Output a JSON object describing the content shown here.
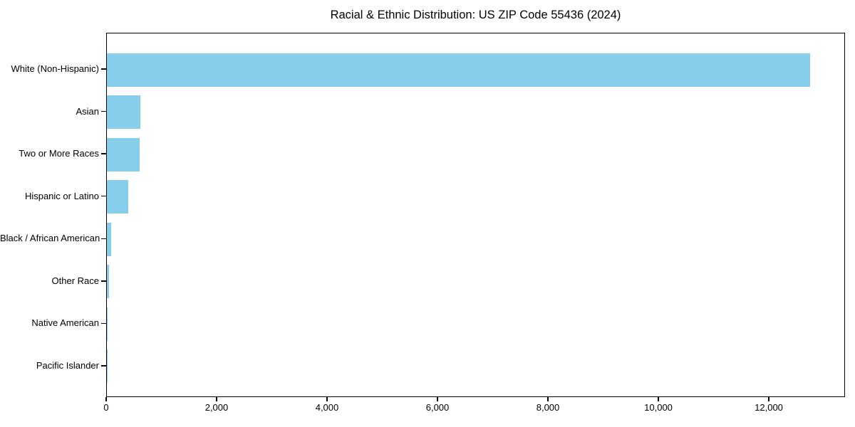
{
  "chart_data": {
    "type": "bar",
    "orientation": "horizontal",
    "title": "Racial & Ethnic Distribution: US ZIP Code 55436 (2024)",
    "categories": [
      "White (Non-Hispanic)",
      "Asian",
      "Two or More Races",
      "Hispanic or Latino",
      "Black / African American",
      "Other Race",
      "Native American",
      "Pacific Islander"
    ],
    "values": [
      12735,
      605,
      590,
      390,
      78,
      40,
      10,
      4
    ],
    "xlabel": "",
    "ylabel": "",
    "xlim": [
      0,
      13380
    ],
    "xticks": [
      0,
      2000,
      4000,
      6000,
      8000,
      10000,
      12000
    ],
    "xtick_labels": [
      "0",
      "2,000",
      "4,000",
      "6,000",
      "8,000",
      "10,000",
      "12,000"
    ],
    "bar_color": "#87CEEB",
    "axis_color": "#000000",
    "background_color": "#FFFFFF",
    "grid": false,
    "legend": "none"
  }
}
